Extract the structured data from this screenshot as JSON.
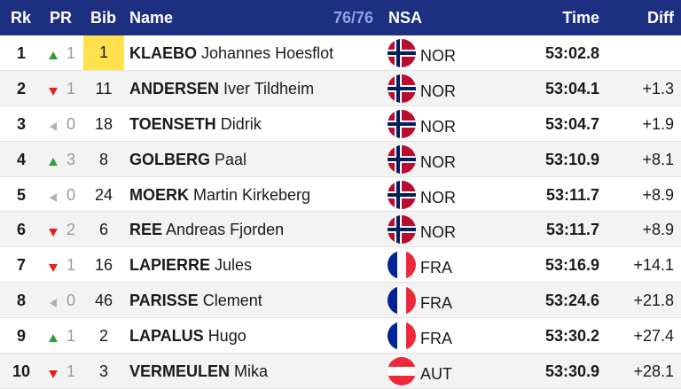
{
  "header": {
    "rk": "Rk",
    "pr": "PR",
    "bib": "Bib",
    "name": "Name",
    "count": "76/76",
    "nsa": "NSA",
    "time": "Time",
    "diff": "Diff"
  },
  "colors": {
    "header_bg": "#1c2f80",
    "up": "#2e9d3a",
    "down": "#e02222",
    "same": "#b0b0b0",
    "leader_bib": "#ffe14d"
  },
  "rows": [
    {
      "rk": "1",
      "trend": "up",
      "pr": "1",
      "bib": "1",
      "surname": "KLAEBO",
      "given": "Johannes Hoesflot",
      "nsa": "NOR",
      "flag": "norway-flag-icon",
      "time": "53:02.8",
      "diff": ""
    },
    {
      "rk": "2",
      "trend": "down",
      "pr": "1",
      "bib": "11",
      "surname": "ANDERSEN",
      "given": "Iver Tildheim",
      "nsa": "NOR",
      "flag": "norway-flag-icon",
      "time": "53:04.1",
      "diff": "+1.3"
    },
    {
      "rk": "3",
      "trend": "same",
      "pr": "0",
      "bib": "18",
      "surname": "TOENSETH",
      "given": "Didrik",
      "nsa": "NOR",
      "flag": "norway-flag-icon",
      "time": "53:04.7",
      "diff": "+1.9"
    },
    {
      "rk": "4",
      "trend": "up",
      "pr": "3",
      "bib": "8",
      "surname": "GOLBERG",
      "given": "Paal",
      "nsa": "NOR",
      "flag": "norway-flag-icon",
      "time": "53:10.9",
      "diff": "+8.1"
    },
    {
      "rk": "5",
      "trend": "same",
      "pr": "0",
      "bib": "24",
      "surname": "MOERK",
      "given": "Martin Kirkeberg",
      "nsa": "NOR",
      "flag": "norway-flag-icon",
      "time": "53:11.7",
      "diff": "+8.9"
    },
    {
      "rk": "6",
      "trend": "down",
      "pr": "2",
      "bib": "6",
      "surname": "REE",
      "given": "Andreas Fjorden",
      "nsa": "NOR",
      "flag": "norway-flag-icon",
      "time": "53:11.7",
      "diff": "+8.9"
    },
    {
      "rk": "7",
      "trend": "down",
      "pr": "1",
      "bib": "16",
      "surname": "LAPIERRE",
      "given": "Jules",
      "nsa": "FRA",
      "flag": "france-flag-icon",
      "time": "53:16.9",
      "diff": "+14.1"
    },
    {
      "rk": "8",
      "trend": "same",
      "pr": "0",
      "bib": "46",
      "surname": "PARISSE",
      "given": "Clement",
      "nsa": "FRA",
      "flag": "france-flag-icon",
      "time": "53:24.6",
      "diff": "+21.8"
    },
    {
      "rk": "9",
      "trend": "up",
      "pr": "1",
      "bib": "2",
      "surname": "LAPALUS",
      "given": "Hugo",
      "nsa": "FRA",
      "flag": "france-flag-icon",
      "time": "53:30.2",
      "diff": "+27.4"
    },
    {
      "rk": "10",
      "trend": "down",
      "pr": "1",
      "bib": "3",
      "surname": "VERMEULEN",
      "given": "Mika",
      "nsa": "AUT",
      "flag": "austria-flag-icon",
      "time": "53:30.9",
      "diff": "+28.1"
    }
  ]
}
